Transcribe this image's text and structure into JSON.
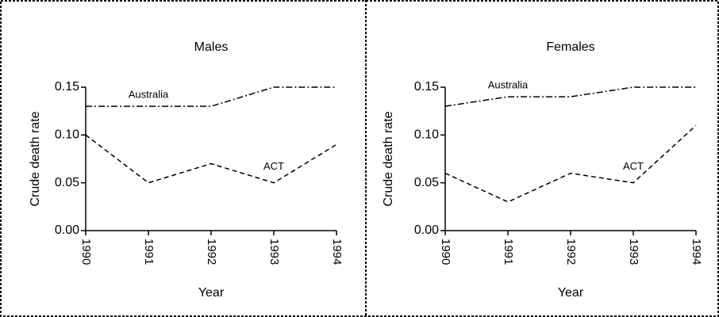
{
  "chart_data": [
    {
      "type": "line",
      "title": "Males",
      "x_label": "Year",
      "y_label": "Crude death rate",
      "categories": [
        "1990",
        "1991",
        "1992",
        "1993",
        "1994"
      ],
      "series": [
        {
          "name": "Australia",
          "color": "#000000",
          "values": [
            0.13,
            0.13,
            0.13,
            0.15,
            0.15
          ]
        },
        {
          "name": "ACT",
          "color": "#000000",
          "values": [
            0.1,
            0.05,
            0.07,
            0.05,
            0.09
          ]
        }
      ],
      "ylim": [
        0,
        0.15
      ],
      "yticks": [
        {
          "value": 0,
          "label": "0.00"
        },
        0.05,
        {
          "value": 0.1,
          "label": "0.10"
        },
        0.15
      ]
    },
    {
      "type": "line",
      "title": "Females",
      "x_label": "Year",
      "y_label": "Crude death rate",
      "categories": [
        "1990",
        "1991",
        "1992",
        "1993",
        "1994"
      ],
      "series": [
        {
          "name": "Australia",
          "color": "#000000",
          "values": [
            0.13,
            0.14,
            0.14,
            0.15,
            0.15
          ]
        },
        {
          "name": "ACT",
          "color": "#000000",
          "values": [
            0.06,
            0.03,
            0.06,
            0.05,
            0.11
          ]
        }
      ],
      "ylim": [
        0,
        0.15
      ],
      "yticks": [
        {
          "value": 0,
          "label": "0.00"
        },
        0.05,
        {
          "value": 0.1,
          "label": "0.10"
        },
        0.15
      ]
    }
  ]
}
